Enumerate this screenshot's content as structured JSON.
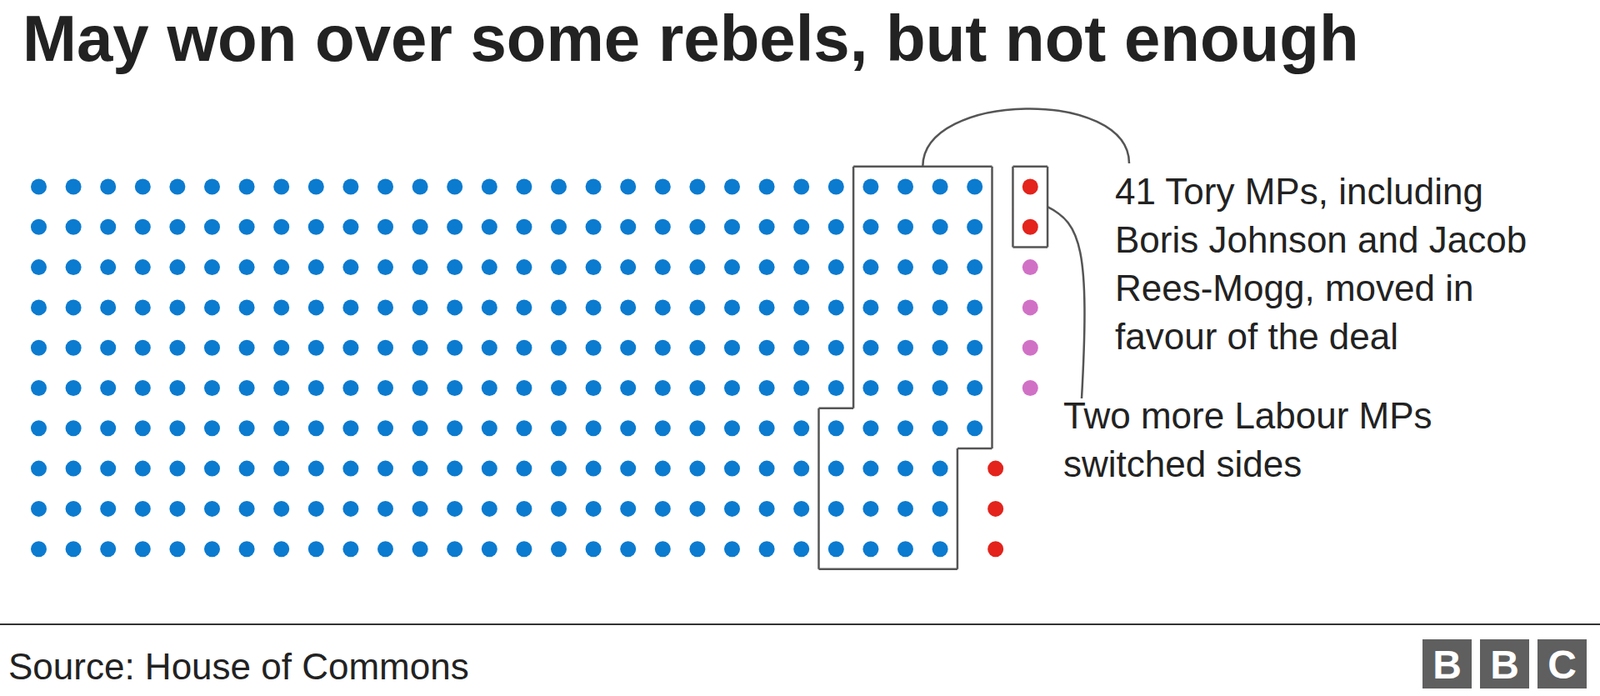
{
  "chart_data": {
    "type": "waffle",
    "title": "May won over some rebels, but not enough",
    "groups": [
      {
        "count": 236,
        "color": "#0b7bd0"
      },
      {
        "count": 41,
        "color": "#0b7bd0",
        "annotation": "41 Tory MPs, including Boris Johnson and Jacob Rees-Mogg, moved in favour of the deal"
      },
      {
        "count": 3,
        "color": "#e3231c"
      },
      {
        "count": 2,
        "color": "#e3231c",
        "annotation": "Two more Labour MPs switched sides"
      },
      {
        "count": 4,
        "color": "#d171c6"
      }
    ]
  },
  "source": "Source: House of Commons",
  "logo": "BBC"
}
